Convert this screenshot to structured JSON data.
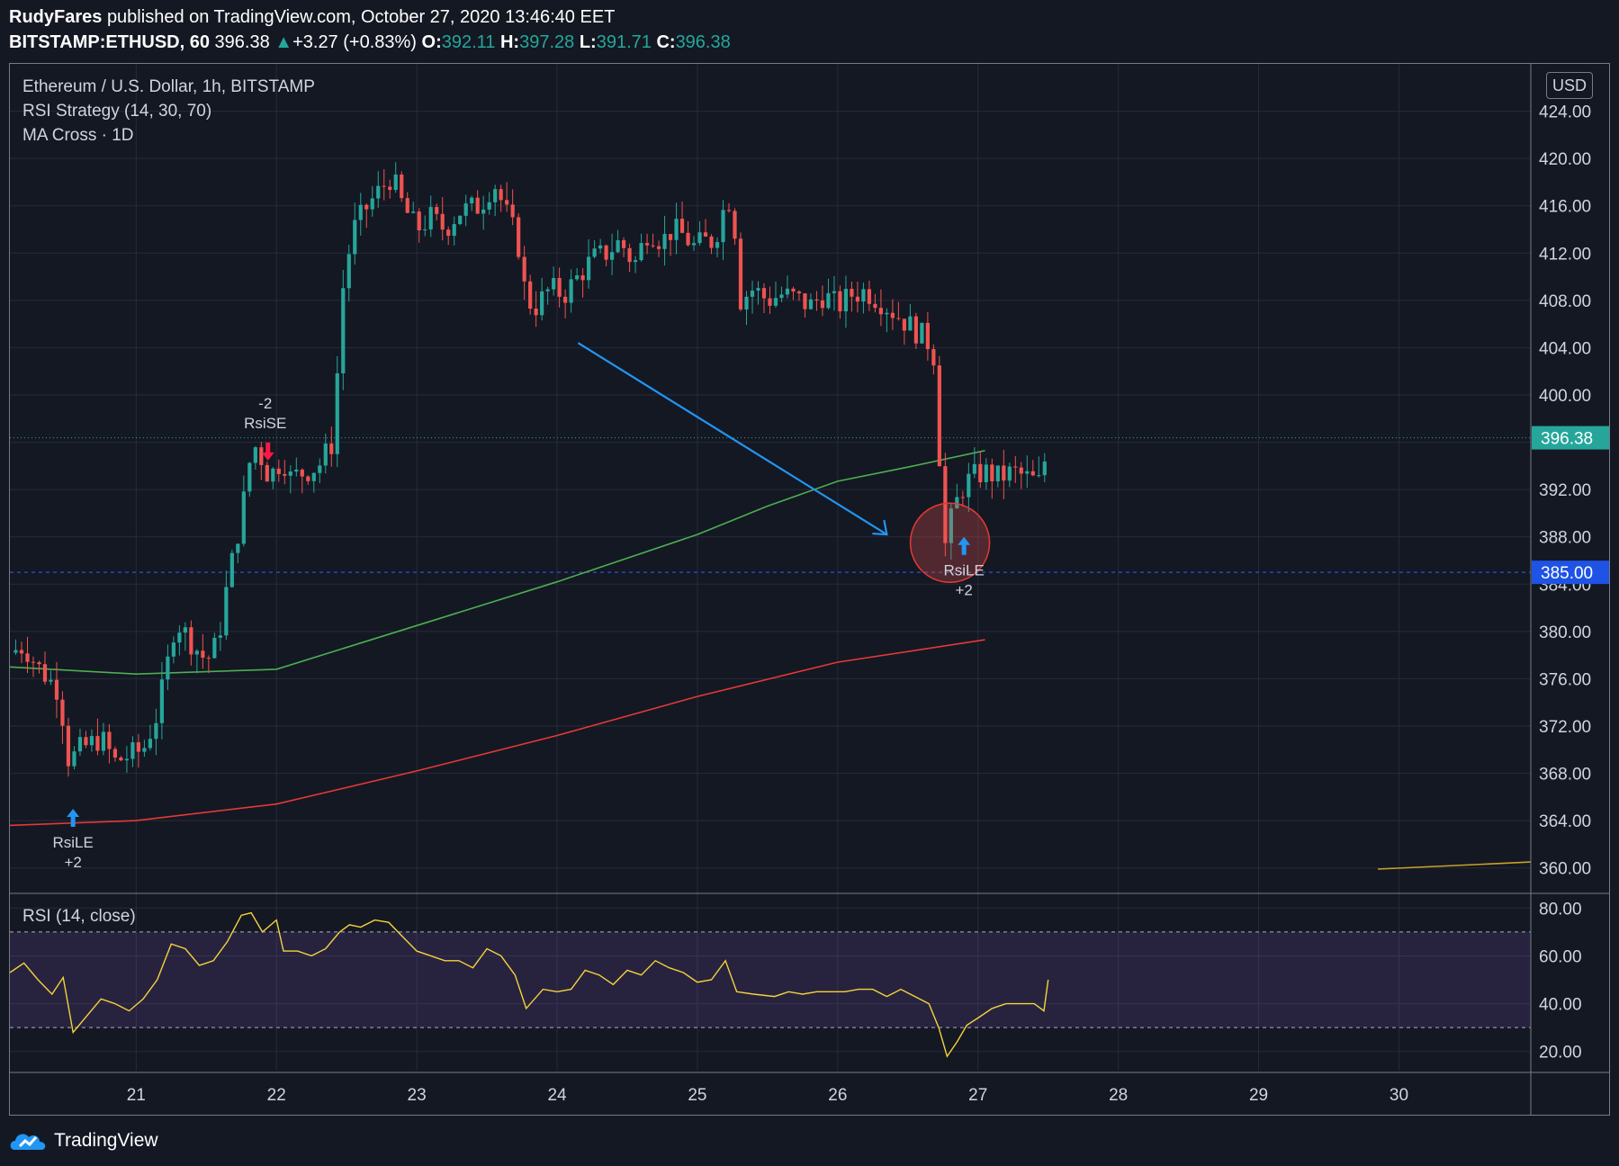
{
  "header": {
    "publisher": "RudyFares",
    "published_text": "published on TradingView.com, October 27, 2020 13:46:40 EET",
    "symbol": "BITSTAMP:ETHUSD, 60",
    "last": "396.38",
    "change": "+3.27 (+0.83%)",
    "o_label": "O:",
    "o": "392.11",
    "h_label": "H:",
    "h": "397.28",
    "l_label": "L:",
    "l": "391.71",
    "c_label": "C:",
    "c": "396.38"
  },
  "legend": {
    "main": "Ethereum / U.S. Dollar, 1h, BITSTAMP",
    "strategy": "RSI Strategy (14, 30, 70)",
    "ma": "MA Cross · 1D",
    "rsi": "RSI (14, close)"
  },
  "currency_badge": "USD",
  "footer": {
    "brand": "TradingView"
  },
  "colors": {
    "up": "#26a69a",
    "down": "#ef5350",
    "ma_fast": "#4caf50",
    "ma_slow": "#e53935",
    "rsi": "#f5d33b",
    "arrow": "#2196f3",
    "bg": "#141823"
  },
  "chart_data": [
    {
      "type": "candlestick",
      "title": "Ethereum / U.S. Dollar, 1h, BITSTAMP",
      "y_ticks": [
        "360.00",
        "364.00",
        "368.00",
        "372.00",
        "376.00",
        "380.00",
        "384.00",
        "388.00",
        "392.00",
        "396.00",
        "400.00",
        "404.00",
        "408.00",
        "412.00",
        "416.00",
        "420.00",
        "424.00"
      ],
      "x_ticks": [
        "21",
        "22",
        "23",
        "24",
        "25",
        "26",
        "27",
        "28",
        "29",
        "30"
      ],
      "ylim": [
        358,
        428
      ],
      "xlim": [
        20.1,
        30.94
      ],
      "last_price_label": "396.38",
      "last_price": 396.38,
      "level_label": "385.00",
      "level": 385.0,
      "price_path": [
        [
          20.1,
          378.2
        ],
        [
          20.2,
          378.8
        ],
        [
          20.3,
          377.0
        ],
        [
          20.45,
          375.0
        ],
        [
          20.52,
          369.0
        ],
        [
          20.6,
          370.0
        ],
        [
          20.75,
          371.0
        ],
        [
          20.85,
          369.0
        ],
        [
          20.95,
          369.5
        ],
        [
          21.05,
          370.0
        ],
        [
          21.15,
          373.0
        ],
        [
          21.22,
          377.0
        ],
        [
          21.28,
          381.0
        ],
        [
          21.4,
          379.0
        ],
        [
          21.5,
          377.5
        ],
        [
          21.58,
          379.0
        ],
        [
          21.65,
          384.0
        ],
        [
          21.72,
          388.0
        ],
        [
          21.78,
          392.0
        ],
        [
          21.83,
          396.0
        ],
        [
          21.88,
          395.0
        ],
        [
          21.95,
          393.0
        ],
        [
          22.0,
          394.0
        ],
        [
          22.05,
          394.5
        ],
        [
          22.1,
          393.0
        ],
        [
          22.2,
          393.5
        ],
        [
          22.3,
          394.0
        ],
        [
          22.4,
          396.0
        ],
        [
          22.48,
          410.0
        ],
        [
          22.55,
          414.0
        ],
        [
          22.65,
          416.0
        ],
        [
          22.75,
          417.5
        ],
        [
          22.82,
          418.5
        ],
        [
          22.9,
          416.0
        ],
        [
          23.0,
          414.0
        ],
        [
          23.1,
          415.0
        ],
        [
          23.2,
          414.0
        ],
        [
          23.3,
          415.5
        ],
        [
          23.45,
          416.0
        ],
        [
          23.55,
          418.0
        ],
        [
          23.65,
          415.0
        ],
        [
          23.72,
          413.0
        ],
        [
          23.78,
          408.0
        ],
        [
          23.85,
          407.5
        ],
        [
          23.95,
          409.0
        ],
        [
          24.05,
          408.5
        ],
        [
          24.15,
          410.0
        ],
        [
          24.25,
          411.5
        ],
        [
          24.35,
          412.0
        ],
        [
          24.45,
          413.0
        ],
        [
          24.55,
          411.0
        ],
        [
          24.65,
          414.0
        ],
        [
          24.75,
          413.0
        ],
        [
          24.82,
          414.0
        ],
        [
          24.9,
          413.5
        ],
        [
          24.98,
          412.5
        ],
        [
          25.05,
          413.0
        ],
        [
          25.12,
          413.0
        ],
        [
          25.18,
          415.5
        ],
        [
          25.25,
          417.0
        ],
        [
          25.3,
          408.0
        ],
        [
          25.4,
          409.0
        ],
        [
          25.5,
          408.0
        ],
        [
          25.6,
          408.5
        ],
        [
          25.7,
          408.2
        ],
        [
          25.8,
          407.5
        ],
        [
          25.9,
          408.5
        ],
        [
          26.0,
          407.5
        ],
        [
          26.1,
          408.5
        ],
        [
          26.2,
          408.8
        ],
        [
          26.3,
          408.0
        ],
        [
          26.4,
          407.0
        ],
        [
          26.5,
          406.0
        ],
        [
          26.6,
          405.0
        ],
        [
          26.68,
          404.0
        ],
        [
          26.72,
          396.0
        ],
        [
          26.76,
          387.0
        ],
        [
          26.82,
          390.0
        ],
        [
          26.88,
          392.0
        ],
        [
          26.95,
          393.0
        ],
        [
          27.05,
          393.5
        ],
        [
          27.15,
          393.0
        ],
        [
          27.25,
          393.5
        ],
        [
          27.35,
          393.0
        ],
        [
          27.45,
          392.5
        ],
        [
          27.5,
          396.38
        ]
      ],
      "series": [
        {
          "name": "MA fast",
          "color": "#4caf50",
          "points": [
            [
              20.1,
              377.0
            ],
            [
              21.0,
              376.4
            ],
            [
              22.0,
              376.8
            ],
            [
              23.0,
              380.5
            ],
            [
              24.0,
              384.2
            ],
            [
              25.0,
              388.2
            ],
            [
              25.5,
              390.6
            ],
            [
              26.0,
              392.7
            ],
            [
              26.5,
              393.9
            ],
            [
              27.05,
              395.3
            ]
          ]
        },
        {
          "name": "MA slow",
          "color": "#e53935",
          "points": [
            [
              20.1,
              363.6
            ],
            [
              21.0,
              364.0
            ],
            [
              22.0,
              365.4
            ],
            [
              23.0,
              368.2
            ],
            [
              24.0,
              371.2
            ],
            [
              25.0,
              374.5
            ],
            [
              26.0,
              377.4
            ],
            [
              27.05,
              379.3
            ]
          ]
        },
        {
          "name": "MA slow 2",
          "color": "#c9a227",
          "points": [
            [
              29.85,
              359.9
            ],
            [
              30.94,
              360.5
            ]
          ]
        }
      ],
      "annotations": [
        {
          "text_top": "RsiLE",
          "text_bottom": "+2",
          "x": 20.55,
          "y": 365.0,
          "dir": "up"
        },
        {
          "text_top": "-2",
          "text_bottom": "RsiSE",
          "x": 21.92,
          "y": 397.5,
          "dir": "down"
        },
        {
          "text_top": "RsiLE",
          "text_bottom": "+2",
          "x": 26.9,
          "y": 388.0,
          "dir": "up"
        }
      ],
      "trend_arrow": {
        "from": [
          24.15,
          404.4
        ],
        "to": [
          26.35,
          388.2
        ]
      },
      "highlight_circle": {
        "x": 26.8,
        "y": 387.5
      }
    },
    {
      "type": "line",
      "title": "RSI (14, close)",
      "y_ticks": [
        "20.00",
        "40.00",
        "60.00",
        "80.00"
      ],
      "ylim": [
        12,
        85
      ],
      "band": [
        30,
        70
      ],
      "values": [
        [
          20.1,
          53
        ],
        [
          20.2,
          57
        ],
        [
          20.3,
          50
        ],
        [
          20.4,
          44
        ],
        [
          20.48,
          51
        ],
        [
          20.55,
          28
        ],
        [
          20.65,
          35
        ],
        [
          20.75,
          42
        ],
        [
          20.85,
          40
        ],
        [
          20.95,
          37
        ],
        [
          21.05,
          42
        ],
        [
          21.15,
          50
        ],
        [
          21.25,
          65
        ],
        [
          21.35,
          63
        ],
        [
          21.45,
          56
        ],
        [
          21.55,
          58
        ],
        [
          21.65,
          66
        ],
        [
          21.75,
          77
        ],
        [
          21.82,
          78
        ],
        [
          21.9,
          70
        ],
        [
          22.0,
          75
        ],
        [
          22.05,
          62
        ],
        [
          22.15,
          62
        ],
        [
          22.25,
          60
        ],
        [
          22.35,
          63
        ],
        [
          22.45,
          70
        ],
        [
          22.52,
          73
        ],
        [
          22.6,
          72
        ],
        [
          22.7,
          75
        ],
        [
          22.8,
          74
        ],
        [
          22.9,
          68
        ],
        [
          23.0,
          62
        ],
        [
          23.1,
          60
        ],
        [
          23.2,
          58
        ],
        [
          23.3,
          58
        ],
        [
          23.4,
          55
        ],
        [
          23.5,
          63
        ],
        [
          23.6,
          60
        ],
        [
          23.7,
          52
        ],
        [
          23.78,
          38
        ],
        [
          23.9,
          46
        ],
        [
          24.0,
          45
        ],
        [
          24.1,
          46
        ],
        [
          24.2,
          54
        ],
        [
          24.3,
          52
        ],
        [
          24.4,
          48
        ],
        [
          24.5,
          54
        ],
        [
          24.6,
          52
        ],
        [
          24.7,
          58
        ],
        [
          24.8,
          55
        ],
        [
          24.9,
          53
        ],
        [
          25.0,
          49
        ],
        [
          25.1,
          50
        ],
        [
          25.2,
          58
        ],
        [
          25.28,
          45
        ],
        [
          25.4,
          44
        ],
        [
          25.55,
          43
        ],
        [
          25.65,
          45
        ],
        [
          25.75,
          44
        ],
        [
          25.85,
          45
        ],
        [
          25.95,
          45
        ],
        [
          26.05,
          45
        ],
        [
          26.15,
          46
        ],
        [
          26.25,
          46
        ],
        [
          26.35,
          43
        ],
        [
          26.45,
          46
        ],
        [
          26.55,
          43
        ],
        [
          26.65,
          40
        ],
        [
          26.72,
          30
        ],
        [
          26.78,
          18
        ],
        [
          26.85,
          24
        ],
        [
          26.92,
          31
        ],
        [
          27.0,
          34
        ],
        [
          27.1,
          38
        ],
        [
          27.2,
          40
        ],
        [
          27.3,
          40
        ],
        [
          27.4,
          40
        ],
        [
          27.47,
          37
        ],
        [
          27.5,
          50
        ]
      ]
    }
  ]
}
